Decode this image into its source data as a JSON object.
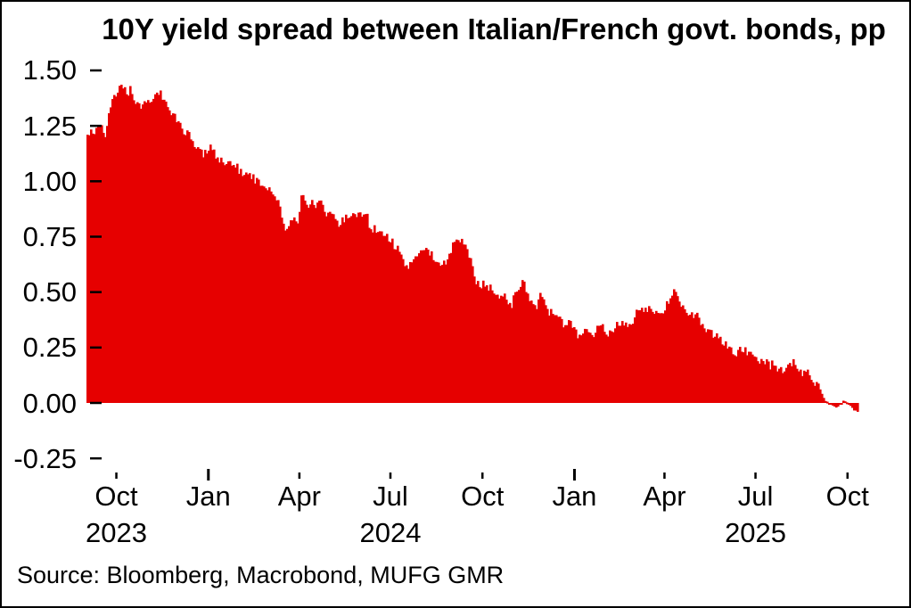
{
  "source": "Source: Bloomberg, Macrobond, MUFG GMR",
  "colors": {
    "area": "#e60000",
    "text": "#000000",
    "background": "#ffffff",
    "border": "#000000"
  },
  "chart_data": {
    "type": "area",
    "title": "10Y yield spread between Italian/French govt. bonds, pp",
    "xlabel": "",
    "ylabel": "pp",
    "ylim": [
      -0.25,
      1.5
    ],
    "grid": false,
    "legend": "none",
    "yticks": [
      "1.50",
      "1.25",
      "1.00",
      "0.75",
      "0.50",
      "0.25",
      "0.00",
      "-0.25"
    ],
    "x_domain": {
      "start": "2023-09-02",
      "end": "2025-10-11"
    },
    "xticks": [
      {
        "label": "Oct",
        "date": "2023-10-01",
        "major": false,
        "year_label": "2023"
      },
      {
        "label": "Jan",
        "date": "2024-01-01",
        "major": true
      },
      {
        "label": "Apr",
        "date": "2024-04-01",
        "major": false
      },
      {
        "label": "Jul",
        "date": "2024-07-01",
        "major": false,
        "year_label": "2024"
      },
      {
        "label": "Oct",
        "date": "2024-10-01",
        "major": false
      },
      {
        "label": "Jan",
        "date": "2025-01-01",
        "major": true
      },
      {
        "label": "Apr",
        "date": "2025-04-01",
        "major": false
      },
      {
        "label": "Jul",
        "date": "2025-07-01",
        "major": false,
        "year_label": "2025"
      },
      {
        "label": "Oct",
        "date": "2025-10-01",
        "major": false
      }
    ],
    "series": [
      {
        "name": "Italy-France 10Y govt. bond yield spread, pp",
        "values": [
          1.21,
          1.22,
          1.23,
          1.25,
          1.24,
          1.22,
          1.3,
          1.36,
          1.38,
          1.42,
          1.43,
          1.4,
          1.41,
          1.37,
          1.36,
          1.34,
          1.37,
          1.36,
          1.38,
          1.4,
          1.41,
          1.38,
          1.35,
          1.32,
          1.3,
          1.28,
          1.26,
          1.23,
          1.22,
          1.19,
          1.17,
          1.15,
          1.13,
          1.12,
          1.14,
          1.15,
          1.12,
          1.1,
          1.09,
          1.08,
          1.07,
          1.06,
          1.06,
          1.05,
          1.04,
          1.03,
          1.02,
          1.01,
          1.0,
          0.99,
          0.98,
          0.97,
          0.95,
          0.92,
          0.88,
          0.8,
          0.78,
          0.82,
          0.83,
          0.82,
          0.94,
          0.9,
          0.89,
          0.9,
          0.89,
          0.92,
          0.88,
          0.86,
          0.85,
          0.83,
          0.82,
          0.81,
          0.83,
          0.84,
          0.84,
          0.83,
          0.84,
          0.85,
          0.86,
          0.81,
          0.79,
          0.77,
          0.76,
          0.75,
          0.75,
          0.74,
          0.71,
          0.69,
          0.66,
          0.63,
          0.62,
          0.63,
          0.64,
          0.68,
          0.7,
          0.68,
          0.67,
          0.66,
          0.65,
          0.64,
          0.64,
          0.65,
          0.68,
          0.73,
          0.74,
          0.73,
          0.71,
          0.67,
          0.62,
          0.55,
          0.54,
          0.53,
          0.52,
          0.53,
          0.51,
          0.48,
          0.47,
          0.5,
          0.46,
          0.45,
          0.48,
          0.53,
          0.55,
          0.52,
          0.48,
          0.45,
          0.44,
          0.48,
          0.46,
          0.42,
          0.41,
          0.4,
          0.38,
          0.37,
          0.34,
          0.36,
          0.34,
          0.32,
          0.29,
          0.31,
          0.32,
          0.3,
          0.31,
          0.34,
          0.36,
          0.33,
          0.32,
          0.33,
          0.34,
          0.35,
          0.37,
          0.37,
          0.35,
          0.36,
          0.4,
          0.41,
          0.42,
          0.42,
          0.43,
          0.42,
          0.41,
          0.42,
          0.43,
          0.45,
          0.49,
          0.52,
          0.44,
          0.42,
          0.41,
          0.4,
          0.4,
          0.39,
          0.37,
          0.35,
          0.33,
          0.32,
          0.31,
          0.3,
          0.28,
          0.26,
          0.25,
          0.24,
          0.23,
          0.24,
          0.25,
          0.22,
          0.21,
          0.2,
          0.19,
          0.19,
          0.18,
          0.17,
          0.17,
          0.16,
          0.16,
          0.15,
          0.15,
          0.16,
          0.19,
          0.15,
          0.14,
          0.13,
          0.13,
          0.11,
          0.08,
          0.09,
          0.04,
          0.01,
          0.0,
          -0.01,
          -0.02,
          -0.01,
          0.01,
          0.0,
          -0.01,
          -0.03,
          -0.04
        ]
      }
    ]
  }
}
